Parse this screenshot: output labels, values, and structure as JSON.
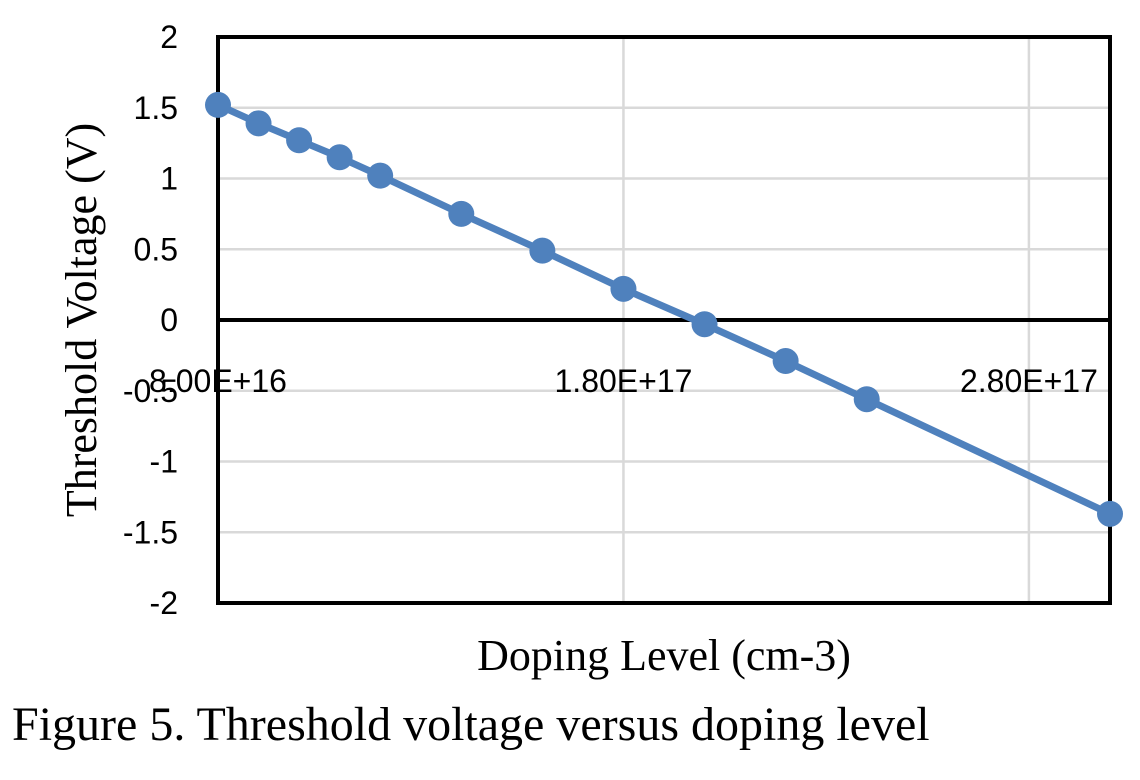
{
  "chart_data": {
    "type": "line",
    "title": "",
    "xlabel": "Doping Level (cm-3)",
    "ylabel": "Threshold Voltage (V)",
    "xlim": [
      8e+16,
      3e+17
    ],
    "ylim": [
      -2,
      2
    ],
    "grid": true,
    "legend": "none",
    "x_tick_values": [
      8e+16,
      1.8e+17,
      2.8e+17
    ],
    "x_tick_labels": [
      "8.00E+16",
      "1.80E+17",
      "2.80E+17"
    ],
    "y_tick_values": [
      2,
      1.5,
      1,
      0.5,
      0,
      -0.5,
      -1,
      -1.5,
      -2
    ],
    "y_tick_labels": [
      "2",
      "1.5",
      "1",
      "0.5",
      "0",
      "-0.5",
      "-1",
      "-1.5",
      "-2"
    ],
    "series": [
      {
        "name": "Threshold voltage",
        "color": "#4F81BD",
        "x": [
          8e+16,
          9e+16,
          1e+17,
          1.1e+17,
          1.2e+17,
          1.4e+17,
          1.6e+17,
          1.8e+17,
          2e+17,
          2.2e+17,
          2.4e+17,
          3e+17
        ],
        "y": [
          1.52,
          1.39,
          1.27,
          1.15,
          1.02,
          0.75,
          0.49,
          0.22,
          -0.03,
          -0.29,
          -0.56,
          -1.37
        ]
      }
    ]
  },
  "caption": "Figure 5. Threshold voltage versus doping level"
}
